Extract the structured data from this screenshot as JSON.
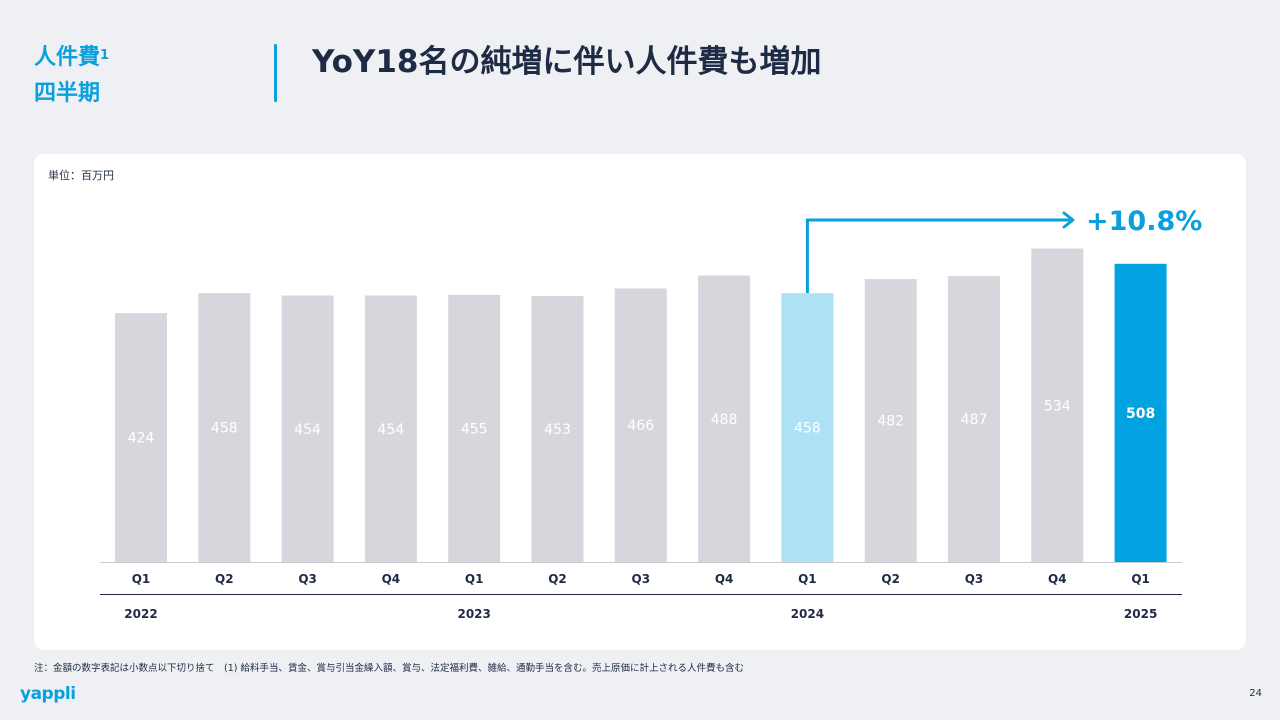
{
  "header": {
    "section_line1": "人件費",
    "section_sup": "1",
    "section_line2": "四半期",
    "headline": "YoY18名の純増に伴い人件費も増加"
  },
  "unit_label": "単位：百万円",
  "growth_label": "+10.8%",
  "footnote": "注：金額の数字表記は小数点以下切り捨て　(1) 給料手当、賃金、賞与引当金繰入額、賞与、法定福利費、雑給、通勤手当を含む。売上原価に計上される人件費も含む",
  "logo": "yappli",
  "page_number": "24",
  "colors": {
    "accent": "#0aa0dc",
    "bar_default": "#d6d7dc",
    "bar_prev_year": "#aee1f5",
    "bar_current": "#00a3e0"
  },
  "chart_data": {
    "type": "bar",
    "categories": [
      "Q1",
      "Q2",
      "Q3",
      "Q4",
      "Q1",
      "Q2",
      "Q3",
      "Q4",
      "Q1",
      "Q2",
      "Q3",
      "Q4",
      "Q1"
    ],
    "years": [
      {
        "label": "2022",
        "index": 0
      },
      {
        "label": "2023",
        "index": 4
      },
      {
        "label": "2024",
        "index": 8
      },
      {
        "label": "2025",
        "index": 12
      }
    ],
    "values": [
      424,
      458,
      454,
      454,
      455,
      453,
      466,
      488,
      458,
      482,
      487,
      534,
      508
    ],
    "highlight": {
      "previous_year_index": 8,
      "current_index": 12
    },
    "annotation": "+10.8%",
    "ylim": [
      0,
      560
    ],
    "grid": false,
    "title": "",
    "xlabel": "",
    "ylabel": ""
  }
}
